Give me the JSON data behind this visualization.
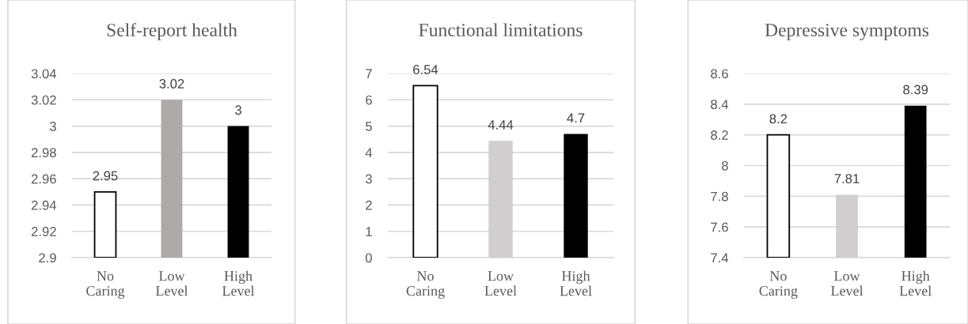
{
  "chart_data": [
    {
      "type": "bar",
      "title": "Self-report health",
      "categories": [
        "No Caring",
        "Low Level",
        "High Level"
      ],
      "values": [
        2.95,
        3.02,
        3
      ],
      "colors": [
        "#ffffff",
        "#aeaaaa",
        "#000000"
      ],
      "ylim": [
        2.9,
        3.04
      ],
      "yticks": [
        2.9,
        2.92,
        2.94,
        2.96,
        2.98,
        3,
        3.02,
        3.04
      ],
      "grid": "y",
      "data_labels": true
    },
    {
      "type": "bar",
      "title": "Functional limitations",
      "categories": [
        "No Caring",
        "Low Level",
        "High Level"
      ],
      "values": [
        6.54,
        4.44,
        4.7
      ],
      "colors": [
        "#ffffff",
        "#d0cece",
        "#000000"
      ],
      "ylim": [
        0,
        7
      ],
      "yticks": [
        0,
        1,
        2,
        3,
        4,
        5,
        6,
        7
      ],
      "grid": "y",
      "data_labels": true
    },
    {
      "type": "bar",
      "title": "Depressive symptoms",
      "categories": [
        "No Caring",
        "Low Level",
        "High Level"
      ],
      "values": [
        8.2,
        7.81,
        8.39
      ],
      "colors": [
        "#ffffff",
        "#d0cece",
        "#000000"
      ],
      "ylim": [
        7.4,
        8.6
      ],
      "yticks": [
        7.4,
        7.6,
        7.8,
        8,
        8.2,
        8.4,
        8.6
      ],
      "grid": "y",
      "data_labels": true
    }
  ]
}
